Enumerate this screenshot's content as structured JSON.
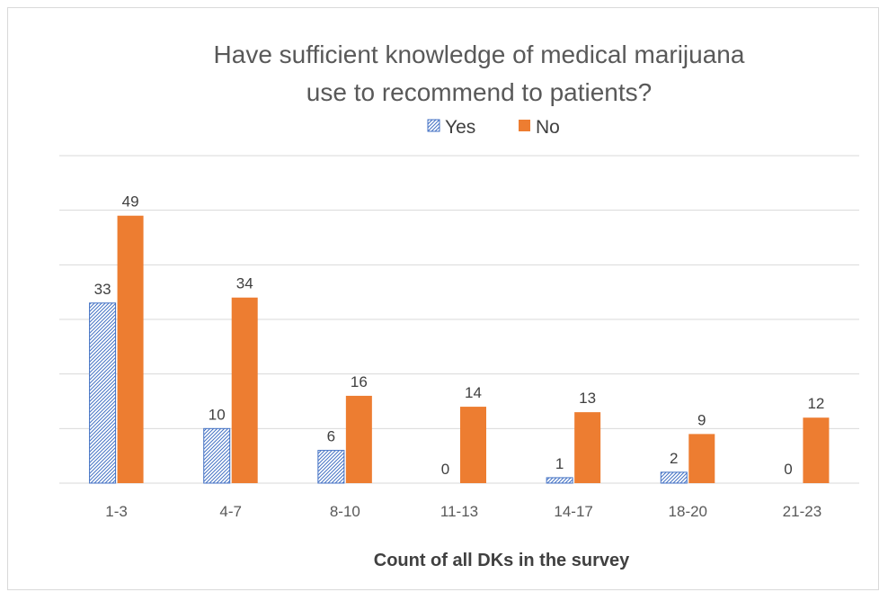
{
  "chart_data": {
    "type": "bar",
    "title_lines": [
      "Have sufficient knowledge of medical marijuana",
      "use to recommend to patients?"
    ],
    "categories": [
      "1-3",
      "4-7",
      "8-10",
      "11-13",
      "14-17",
      "18-20",
      "21-23"
    ],
    "series": [
      {
        "name": "Yes",
        "values": [
          33,
          10,
          6,
          0,
          1,
          2,
          0
        ],
        "color": "#4472c4",
        "pattern": "diagonal-hatch"
      },
      {
        "name": "No",
        "values": [
          49,
          34,
          16,
          14,
          13,
          9,
          12
        ],
        "color": "#ed7d31",
        "pattern": "solid"
      }
    ],
    "xlabel": "Count of all DKs in the survey",
    "ylabel": "",
    "ylim": [
      0,
      60
    ],
    "gridlines": [
      0,
      10,
      20,
      30,
      40,
      50,
      60
    ],
    "y_tick_labels_visible": false,
    "legend_position": "top-center",
    "grid": true
  }
}
